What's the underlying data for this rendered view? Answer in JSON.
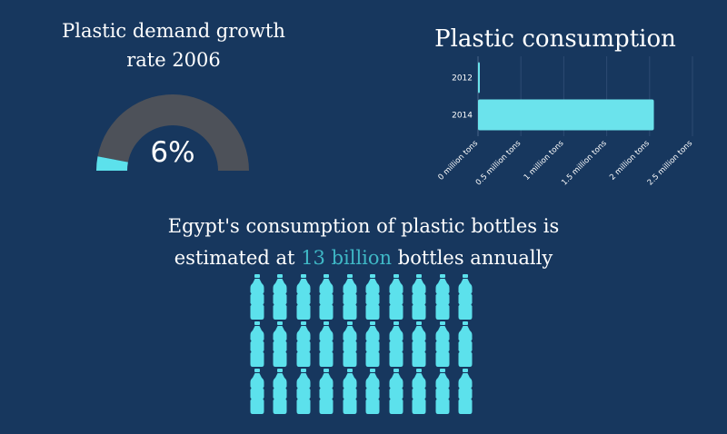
{
  "gauge": {
    "title_line1": "Plastic demand growth",
    "title_line2": "rate 2006",
    "value_label": "6%",
    "value_percent": 6,
    "fill_color": "#5ce1ec",
    "track_color": "#4d5159"
  },
  "headline": {
    "line1": "Egypt's consumption of plastic bottles is",
    "line2_before": "estimated at",
    "line2_highlight": "13 billion",
    "line2_after": "bottles annually"
  },
  "pictogram": {
    "icon": "water-bottle-icon",
    "rows": 3,
    "columns": 10,
    "color": "#5ce1ec"
  },
  "chart_data": {
    "type": "bar",
    "orientation": "horizontal",
    "title": "Plastic consumption",
    "categories": [
      "2012",
      "2014"
    ],
    "values": [
      0.01,
      2.05
    ],
    "unit": "million tons",
    "xlim": [
      0,
      2.5
    ],
    "ticks": [
      0,
      0.5,
      1,
      1.5,
      2,
      2.5
    ],
    "tick_labels": [
      "0 million tons",
      "0.5 million tons",
      "1 million tons",
      "1.5 million tons",
      "2 million tons",
      "2.5 million tons"
    ],
    "grid": true,
    "bar_color": "#6be3ec"
  }
}
